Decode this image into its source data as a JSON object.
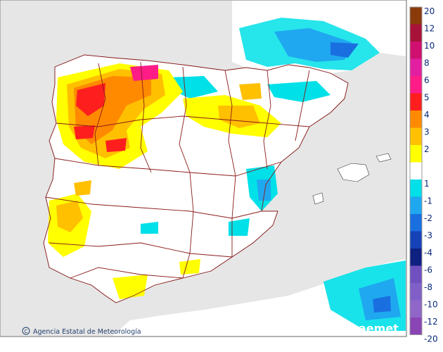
{
  "map": {
    "credit_text": "Agencia Estatal de Meteorología",
    "brand_text": "aemet",
    "colors": {
      "sea": "#e6e6e6",
      "land": "#ffffff",
      "border": "#8b1a1a"
    }
  },
  "legend": {
    "labels": [
      "20",
      "12",
      "10",
      "8",
      "6",
      "5",
      "4",
      "3",
      "2",
      "1",
      "-1",
      "-2",
      "-3",
      "-4",
      "-6",
      "-8",
      "-10",
      "-12",
      "-20"
    ],
    "positive_colors": [
      "#8b3a0a",
      "#a8123a",
      "#d01070",
      "#e21fa0",
      "#ff1c86",
      "#ff1e1e",
      "#ff8a00",
      "#ffc000",
      "#ffff00"
    ],
    "negative_colors": [
      "#00e0e8",
      "#1fa8f0",
      "#1a6fe0",
      "#1642b8",
      "#0e2080",
      "#7050c0",
      "#8060c8",
      "#9066c8",
      "#8a44b4"
    ],
    "neutral_color": "#ffffff"
  }
}
